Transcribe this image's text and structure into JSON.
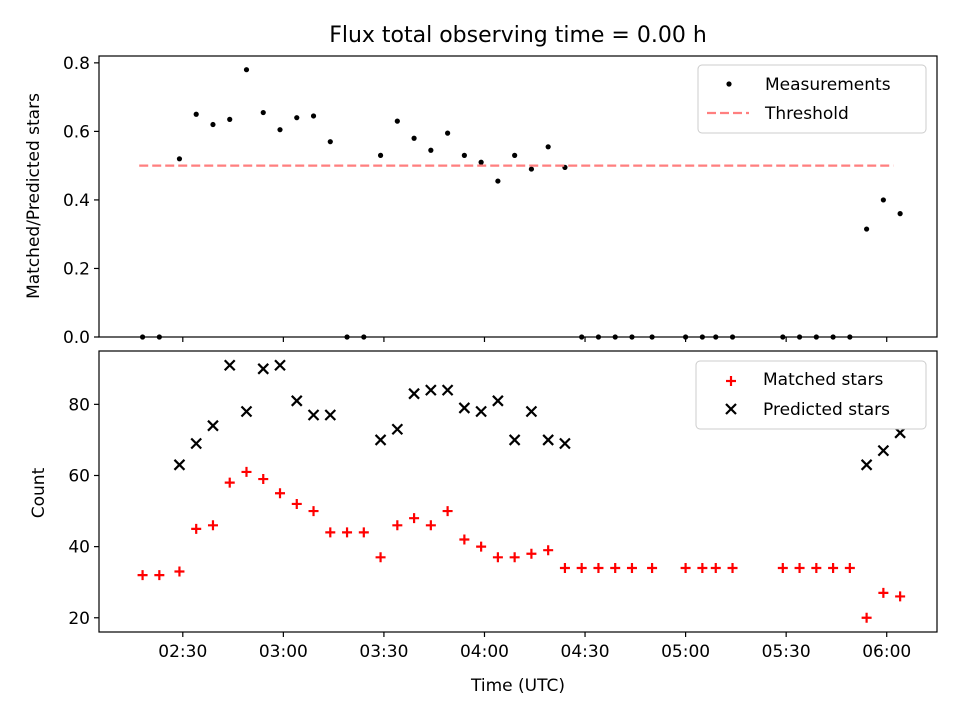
{
  "figure": {
    "title": "Flux total observing time = 0.00 h",
    "xlabel": "Time (UTC)"
  },
  "chart_data": [
    {
      "type": "scatter",
      "title": "Flux total observing time = 0.00 h",
      "xlabel": "",
      "ylabel": "Matched/Predicted stars",
      "xlim": [
        "02:05",
        "06:15"
      ],
      "ylim": [
        0,
        0.82
      ],
      "grid": false,
      "legend_position": "top-right",
      "yticks": [
        0.0,
        0.2,
        0.4,
        0.6,
        0.8
      ],
      "ytick_labels": [
        "0.0",
        "0.2",
        "0.4",
        "0.6",
        "0.8"
      ],
      "series": [
        {
          "name": "Measurements",
          "marker": "dot",
          "color": "#000000",
          "points": [
            [
              "02:18",
              0.0
            ],
            [
              "02:23",
              0.0
            ],
            [
              "02:29",
              0.52
            ],
            [
              "02:34",
              0.65
            ],
            [
              "02:39",
              0.62
            ],
            [
              "02:44",
              0.635
            ],
            [
              "02:49",
              0.78
            ],
            [
              "02:54",
              0.655
            ],
            [
              "02:59",
              0.605
            ],
            [
              "03:04",
              0.64
            ],
            [
              "03:09",
              0.645
            ],
            [
              "03:14",
              0.57
            ],
            [
              "03:19",
              0.0
            ],
            [
              "03:24",
              0.0
            ],
            [
              "03:29",
              0.53
            ],
            [
              "03:34",
              0.63
            ],
            [
              "03:39",
              0.58
            ],
            [
              "03:44",
              0.545
            ],
            [
              "03:49",
              0.595
            ],
            [
              "03:54",
              0.53
            ],
            [
              "03:59",
              0.51
            ],
            [
              "04:04",
              0.455
            ],
            [
              "04:09",
              0.53
            ],
            [
              "04:14",
              0.49
            ],
            [
              "04:19",
              0.555
            ],
            [
              "04:24",
              0.495
            ],
            [
              "04:29",
              0.0
            ],
            [
              "04:34",
              0.0
            ],
            [
              "04:39",
              0.0
            ],
            [
              "04:44",
              0.0
            ],
            [
              "04:50",
              0.0
            ],
            [
              "05:00",
              0.0
            ],
            [
              "05:05",
              0.0
            ],
            [
              "05:09",
              0.0
            ],
            [
              "05:14",
              0.0
            ],
            [
              "05:29",
              0.0
            ],
            [
              "05:34",
              0.0
            ],
            [
              "05:39",
              0.0
            ],
            [
              "05:44",
              0.0
            ],
            [
              "05:49",
              0.0
            ],
            [
              "05:54",
              0.315
            ],
            [
              "05:59",
              0.4
            ],
            [
              "06:04",
              0.36
            ]
          ]
        },
        {
          "name": "Threshold",
          "line_style": "dashed",
          "color": "#ff7f7f",
          "points": [
            [
              "02:17",
              0.5
            ],
            [
              "06:02",
              0.5
            ]
          ]
        }
      ]
    },
    {
      "type": "scatter",
      "title": "",
      "xlabel": "Time (UTC)",
      "ylabel": "Count",
      "xlim": [
        "02:05",
        "06:15"
      ],
      "ylim": [
        16,
        95
      ],
      "grid": false,
      "legend_position": "top-right",
      "yticks": [
        20,
        40,
        60,
        80
      ],
      "ytick_labels": [
        "20",
        "40",
        "60",
        "80"
      ],
      "xticks": [
        "02:30",
        "03:00",
        "03:30",
        "04:00",
        "04:30",
        "05:00",
        "05:30",
        "06:00"
      ],
      "series": [
        {
          "name": "Matched stars",
          "marker": "plus",
          "color": "#ff0000",
          "points": [
            [
              "02:18",
              32
            ],
            [
              "02:23",
              32
            ],
            [
              "02:29",
              33
            ],
            [
              "02:34",
              45
            ],
            [
              "02:39",
              46
            ],
            [
              "02:44",
              58
            ],
            [
              "02:49",
              61
            ],
            [
              "02:54",
              59
            ],
            [
              "02:59",
              55
            ],
            [
              "03:04",
              52
            ],
            [
              "03:09",
              50
            ],
            [
              "03:14",
              44
            ],
            [
              "03:19",
              44
            ],
            [
              "03:24",
              44
            ],
            [
              "03:29",
              37
            ],
            [
              "03:34",
              46
            ],
            [
              "03:39",
              48
            ],
            [
              "03:44",
              46
            ],
            [
              "03:49",
              50
            ],
            [
              "03:54",
              42
            ],
            [
              "03:59",
              40
            ],
            [
              "04:04",
              37
            ],
            [
              "04:09",
              37
            ],
            [
              "04:14",
              38
            ],
            [
              "04:19",
              39
            ],
            [
              "04:24",
              34
            ],
            [
              "04:29",
              34
            ],
            [
              "04:34",
              34
            ],
            [
              "04:39",
              34
            ],
            [
              "04:44",
              34
            ],
            [
              "04:50",
              34
            ],
            [
              "05:00",
              34
            ],
            [
              "05:05",
              34
            ],
            [
              "05:09",
              34
            ],
            [
              "05:14",
              34
            ],
            [
              "05:29",
              34
            ],
            [
              "05:34",
              34
            ],
            [
              "05:39",
              34
            ],
            [
              "05:44",
              34
            ],
            [
              "05:49",
              34
            ],
            [
              "05:54",
              20
            ],
            [
              "05:59",
              27
            ],
            [
              "06:04",
              26
            ]
          ]
        },
        {
          "name": "Predicted stars",
          "marker": "x",
          "color": "#000000",
          "points": [
            [
              "02:29",
              63
            ],
            [
              "02:34",
              69
            ],
            [
              "02:39",
              74
            ],
            [
              "02:44",
              91
            ],
            [
              "02:49",
              78
            ],
            [
              "02:54",
              90
            ],
            [
              "02:59",
              91
            ],
            [
              "03:04",
              81
            ],
            [
              "03:09",
              77
            ],
            [
              "03:14",
              77
            ],
            [
              "03:29",
              70
            ],
            [
              "03:34",
              73
            ],
            [
              "03:39",
              83
            ],
            [
              "03:44",
              84
            ],
            [
              "03:49",
              84
            ],
            [
              "03:54",
              79
            ],
            [
              "03:59",
              78
            ],
            [
              "04:04",
              81
            ],
            [
              "04:09",
              70
            ],
            [
              "04:14",
              78
            ],
            [
              "04:19",
              70
            ],
            [
              "04:24",
              69
            ],
            [
              "05:54",
              63
            ],
            [
              "05:59",
              67
            ],
            [
              "06:04",
              72
            ]
          ]
        }
      ]
    }
  ]
}
